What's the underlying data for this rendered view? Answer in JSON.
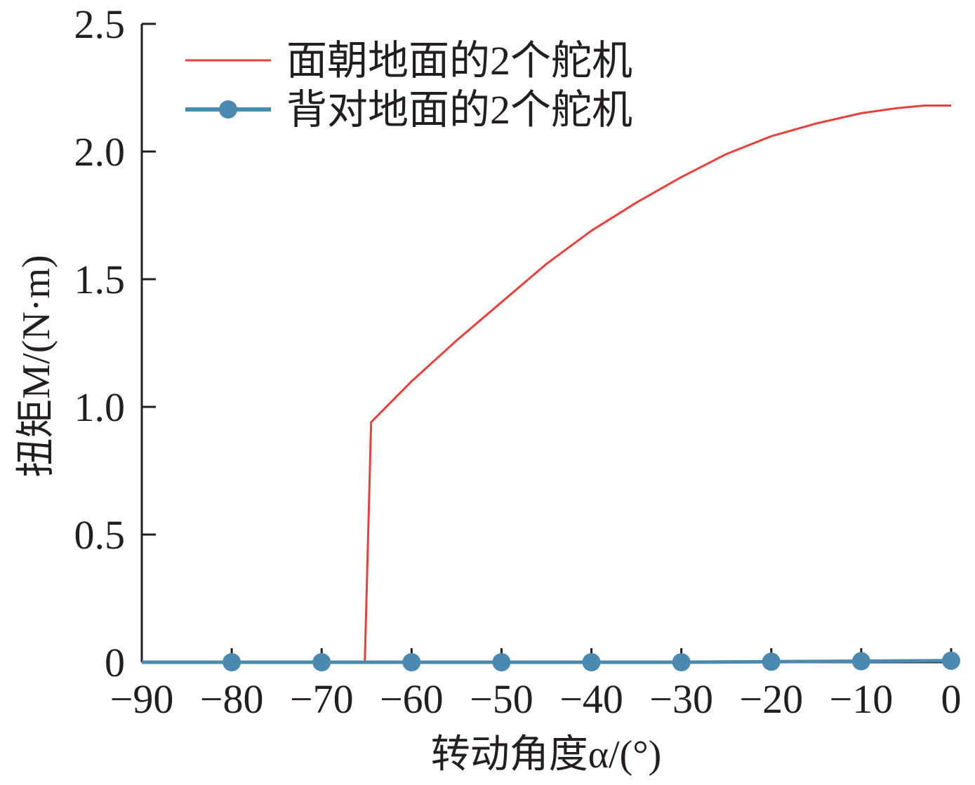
{
  "chart_data": {
    "type": "line",
    "xlabel": "转动角度α/(°)",
    "ylabel": "扭矩M/(N·m)",
    "xlim": [
      -90,
      0
    ],
    "ylim": [
      0,
      2.5
    ],
    "x_ticks": [
      -90,
      -80,
      -70,
      -60,
      -50,
      -40,
      -30,
      -20,
      -10,
      0
    ],
    "x_tick_labels": [
      "−90",
      "−80",
      "−70",
      "−60",
      "−50",
      "−40",
      "−30",
      "−20",
      "−10",
      "0"
    ],
    "y_ticks": [
      0,
      0.5,
      1.0,
      1.5,
      2.0,
      2.5
    ],
    "y_tick_labels": [
      "0",
      "0.5",
      "1.0",
      "1.5",
      "2.0",
      "2.5"
    ],
    "grid": false,
    "legend_position": "top-left",
    "series": [
      {
        "name": "面朝地面的2个舵机",
        "color": "#e8413c",
        "marker": "none",
        "x": [
          -90,
          -80,
          -70,
          -65.2,
          -64.5,
          -60,
          -55,
          -50,
          -45,
          -40,
          -35,
          -30,
          -25,
          -20,
          -15,
          -10,
          -6,
          -3,
          0
        ],
        "y": [
          0.0,
          0.0,
          0.0,
          0.0,
          0.94,
          1.1,
          1.26,
          1.41,
          1.56,
          1.69,
          1.8,
          1.9,
          1.99,
          2.06,
          2.11,
          2.15,
          2.17,
          2.18,
          2.18
        ]
      },
      {
        "name": "背对地面的2个舵机",
        "color": "#4a8ab0",
        "marker": "circle",
        "x": [
          -90,
          -80,
          -70,
          -60,
          -50,
          -40,
          -30,
          -20,
          -10,
          0
        ],
        "y": [
          0.0,
          0.0,
          0.0,
          0.0,
          0.0,
          0.0,
          0.0,
          0.002,
          0.004,
          0.006
        ],
        "marker_x": [
          -80,
          -70,
          -60,
          -50,
          -40,
          -30,
          -20,
          -10,
          0
        ]
      }
    ]
  }
}
